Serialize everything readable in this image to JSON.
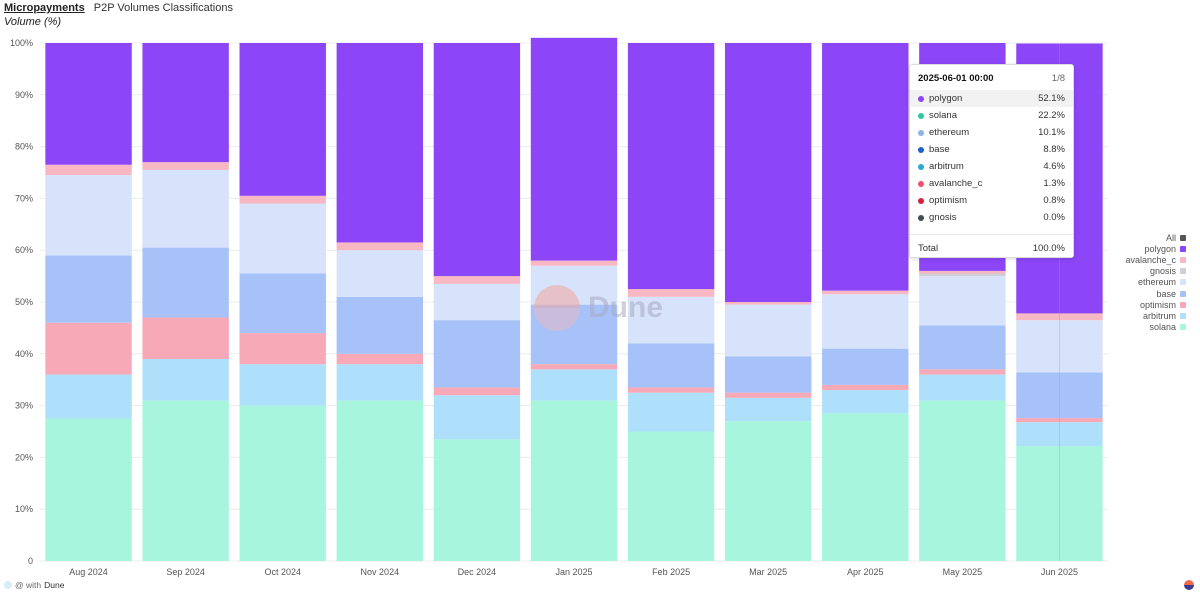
{
  "header": {
    "title": "Micropayments",
    "subtitle": "P2P Volumes Classifications"
  },
  "axis_caption": "Volume (%)",
  "watermark_text": "Dune",
  "footer": {
    "prefix": "@ with",
    "brand": "Dune"
  },
  "colors": {
    "solana": "#a8f5dd",
    "arbitrum": "#aee0fb",
    "optimism": "#f8a9b7",
    "base": "#a7c2f8",
    "ethereum": "#d7e3fa",
    "gnosis": "#cfcfd6",
    "avalanche_c": "#f7b7c3",
    "polygon": "#8c46f8"
  },
  "legend": {
    "all_label": "All",
    "items": [
      {
        "key": "polygon",
        "label": "polygon"
      },
      {
        "key": "avalanche_c",
        "label": "avalanche_c"
      },
      {
        "key": "gnosis",
        "label": "gnosis"
      },
      {
        "key": "ethereum",
        "label": "ethereum"
      },
      {
        "key": "base",
        "label": "base"
      },
      {
        "key": "optimism",
        "label": "optimism"
      },
      {
        "key": "arbitrum",
        "label": "arbitrum"
      },
      {
        "key": "solana",
        "label": "solana"
      }
    ]
  },
  "tooltip": {
    "date": "2025-06-01 00:00",
    "page": "1/8",
    "rows": [
      {
        "name": "polygon",
        "value": "52.1%",
        "color": "#8c46f8",
        "highlight": true
      },
      {
        "name": "solana",
        "value": "22.2%",
        "color": "#2ec7a1",
        "highlight": false
      },
      {
        "name": "ethereum",
        "value": "10.1%",
        "color": "#8fb0e8",
        "highlight": false
      },
      {
        "name": "base",
        "value": "8.8%",
        "color": "#1f5fc9",
        "highlight": false
      },
      {
        "name": "arbitrum",
        "value": "4.6%",
        "color": "#2aa7d6",
        "highlight": false
      },
      {
        "name": "avalanche_c",
        "value": "1.3%",
        "color": "#f0506e",
        "highlight": false
      },
      {
        "name": "optimism",
        "value": "0.8%",
        "color": "#d61f3a",
        "highlight": false
      },
      {
        "name": "gnosis",
        "value": "0.0%",
        "color": "#3f4f4f",
        "highlight": false
      }
    ],
    "total_label": "Total",
    "total_value": "100.0%"
  },
  "chart_data": {
    "type": "bar",
    "stacked": true,
    "normalized": true,
    "categories": [
      "Aug 2024",
      "Sep 2024",
      "Oct 2024",
      "Nov 2024",
      "Dec 2024",
      "Jan 2025",
      "Feb 2025",
      "Mar 2025",
      "Apr 2025",
      "May 2025",
      "Jun 2025"
    ],
    "ylim": [
      0,
      100
    ],
    "yticks": [
      "0",
      "10%",
      "20%",
      "30%",
      "40%",
      "50%",
      "60%",
      "70%",
      "80%",
      "90%",
      "100%"
    ],
    "ylabel": "Volume (%)",
    "legend_position": "right",
    "series": [
      {
        "name": "solana",
        "values": [
          27.5,
          31.0,
          30.0,
          31.0,
          23.5,
          31.0,
          25.0,
          27.0,
          28.5,
          31.0,
          22.2
        ]
      },
      {
        "name": "arbitrum",
        "values": [
          8.5,
          8.0,
          8.0,
          7.0,
          8.5,
          6.0,
          7.5,
          4.5,
          4.5,
          5.0,
          4.6
        ]
      },
      {
        "name": "optimism",
        "values": [
          10.0,
          8.0,
          6.0,
          2.0,
          1.5,
          1.0,
          1.0,
          1.0,
          1.0,
          1.0,
          0.8
        ]
      },
      {
        "name": "base",
        "values": [
          13.0,
          13.5,
          11.5,
          11.0,
          13.0,
          11.5,
          8.5,
          7.0,
          7.0,
          8.5,
          8.8
        ]
      },
      {
        "name": "ethereum",
        "values": [
          15.5,
          15.0,
          13.5,
          9.0,
          7.0,
          7.5,
          9.0,
          10.0,
          10.5,
          9.5,
          10.1
        ]
      },
      {
        "name": "gnosis",
        "values": [
          0,
          0,
          0,
          0,
          0,
          0,
          0,
          0,
          0,
          0.5,
          0
        ]
      },
      {
        "name": "avalanche_c",
        "values": [
          2.0,
          1.5,
          1.5,
          1.5,
          1.5,
          1.0,
          1.5,
          0.5,
          0.7,
          0.5,
          1.3
        ]
      },
      {
        "name": "polygon",
        "values": [
          23.5,
          23.0,
          29.5,
          38.5,
          45.0,
          43.0,
          47.5,
          50.0,
          47.8,
          44.0,
          52.1
        ]
      }
    ]
  }
}
